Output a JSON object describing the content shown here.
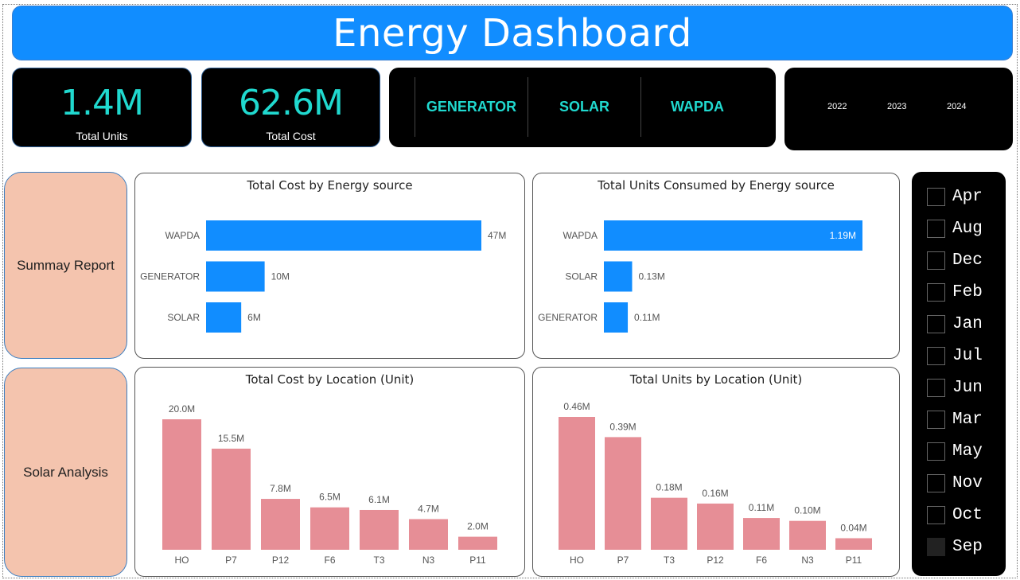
{
  "header": {
    "title": "Energy Dashboard",
    "color": "#118dff"
  },
  "kpis": [
    {
      "value": "1.4M",
      "label": "Total Units"
    },
    {
      "value": "62.6M",
      "label": "Total Cost"
    }
  ],
  "source_slicer": {
    "items": [
      "GENERATOR",
      "SOLAR",
      "WAPDA"
    ],
    "accent": "#20d9cf"
  },
  "year_slicer": {
    "items": [
      "2022",
      "2023",
      "2024"
    ]
  },
  "nav": [
    {
      "label": "Summay Report"
    },
    {
      "label": "Solar Analysis"
    }
  ],
  "month_slicer": {
    "items": [
      {
        "label": "Apr",
        "checked": false
      },
      {
        "label": "Aug",
        "checked": false
      },
      {
        "label": "Dec",
        "checked": false
      },
      {
        "label": "Feb",
        "checked": false
      },
      {
        "label": "Jan",
        "checked": false
      },
      {
        "label": "Jul",
        "checked": false
      },
      {
        "label": "Jun",
        "checked": false
      },
      {
        "label": "Mar",
        "checked": false
      },
      {
        "label": "May",
        "checked": false
      },
      {
        "label": "Nov",
        "checked": false
      },
      {
        "label": "Oct",
        "checked": false
      },
      {
        "label": "Sep",
        "checked": false,
        "highlighted": true
      }
    ]
  },
  "chart_data": [
    {
      "id": "cost-by-source",
      "type": "bar",
      "orientation": "horizontal",
      "title": "Total Cost by Energy source",
      "categories": [
        "WAPDA",
        "GENERATOR",
        "SOLAR"
      ],
      "values": [
        47,
        10,
        6
      ],
      "labels": [
        "47M",
        "10M",
        "6M"
      ],
      "unit": "M",
      "color": "#118dff",
      "xlim": [
        0,
        47
      ]
    },
    {
      "id": "units-by-source",
      "type": "bar",
      "orientation": "horizontal",
      "title": "Total Units Consumed by Energy source",
      "categories": [
        "WAPDA",
        "SOLAR",
        "GENERATOR"
      ],
      "values": [
        1.19,
        0.13,
        0.11
      ],
      "labels": [
        "1.19M",
        "0.13M",
        "0.11M"
      ],
      "unit": "M",
      "color": "#118dff",
      "xlim": [
        0,
        1.19
      ],
      "inside_label_first": true
    },
    {
      "id": "cost-by-location",
      "type": "bar",
      "orientation": "vertical",
      "title": "Total Cost by Location (Unit)",
      "categories": [
        "HO",
        "P7",
        "P12",
        "F6",
        "T3",
        "N3",
        "P11"
      ],
      "values": [
        20.0,
        15.5,
        7.8,
        6.5,
        6.1,
        4.7,
        2.0
      ],
      "labels": [
        "20.0M",
        "15.5M",
        "7.8M",
        "6.5M",
        "6.1M",
        "4.7M",
        "2.0M"
      ],
      "unit": "M",
      "color": "#e68e96",
      "ylim": [
        0,
        20
      ]
    },
    {
      "id": "units-by-location",
      "type": "bar",
      "orientation": "vertical",
      "title": "Total Units by Location (Unit)",
      "categories": [
        "HO",
        "P7",
        "T3",
        "P12",
        "F6",
        "N3",
        "P11"
      ],
      "values": [
        0.46,
        0.39,
        0.18,
        0.16,
        0.11,
        0.1,
        0.04
      ],
      "labels": [
        "0.46M",
        "0.39M",
        "0.18M",
        "0.16M",
        "0.11M",
        "0.10M",
        "0.04M"
      ],
      "unit": "M",
      "color": "#e68e96",
      "ylim": [
        0,
        0.46
      ]
    }
  ]
}
